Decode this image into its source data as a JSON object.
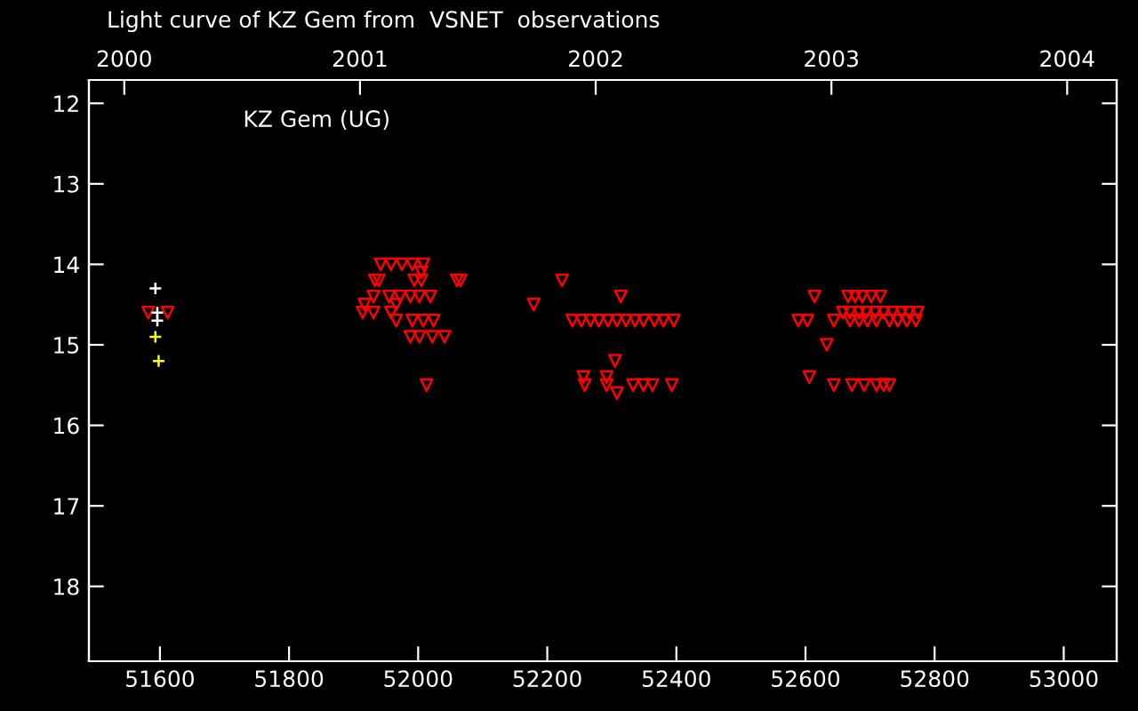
{
  "chart_data": {
    "type": "scatter",
    "title": "Light curve of KZ Gem from  VSNET  observations",
    "annotations": [
      "KZ Gem (UG)"
    ],
    "xlim": [
      51490,
      53082
    ],
    "xticks": [
      51600,
      51800,
      52000,
      52200,
      52400,
      52600,
      52800,
      53000
    ],
    "x2lim": [
      1999.85,
      2004.21
    ],
    "x2ticks": [
      2000,
      2001,
      2002,
      2003,
      2004
    ],
    "ylim": [
      18.93,
      11.71
    ],
    "yticks": [
      12,
      13,
      14,
      15,
      16,
      17,
      18
    ],
    "grid": false,
    "legend": false,
    "series": [
      {
        "color": "#ff0000",
        "marker": "triangle",
        "x": [
          51582,
          51612,
          51942,
          51958,
          51975,
          51991,
          52008,
          52005,
          51933,
          51939,
          51994,
          52005,
          52060,
          52066,
          51931,
          51955,
          51972,
          51988,
          52002,
          52019,
          51917,
          51966,
          51914,
          51931,
          51958,
          51966,
          51991,
          52008,
          52024,
          51988,
          52002,
          52022,
          52041,
          52013,
          52223,
          52314,
          52179,
          52239,
          52253,
          52267,
          52280,
          52294,
          52308,
          52322,
          52336,
          52349,
          52366,
          52380,
          52396,
          52305,
          52256,
          52292,
          52258,
          52292,
          52333,
          52349,
          52363,
          52393,
          52308,
          52614,
          52666,
          52677,
          52688,
          52702,
          52716,
          52658,
          52669,
          52683,
          52694,
          52708,
          52721,
          52735,
          52749,
          52760,
          52774,
          52589,
          52603,
          52644,
          52669,
          52683,
          52696,
          52710,
          52730,
          52743,
          52757,
          52771,
          52633,
          52606,
          52644,
          52672,
          52691,
          52710,
          52721,
          52730
        ],
        "values": [
          14.6,
          14.6,
          14.0,
          14.0,
          14.0,
          14.0,
          14.0,
          14.1,
          14.2,
          14.2,
          14.2,
          14.2,
          14.2,
          14.2,
          14.4,
          14.4,
          14.4,
          14.4,
          14.4,
          14.4,
          14.5,
          14.5,
          14.6,
          14.6,
          14.6,
          14.7,
          14.7,
          14.7,
          14.7,
          14.9,
          14.9,
          14.9,
          14.9,
          15.5,
          14.2,
          14.4,
          14.5,
          14.7,
          14.7,
          14.7,
          14.7,
          14.7,
          14.7,
          14.7,
          14.7,
          14.7,
          14.7,
          14.7,
          14.7,
          15.2,
          15.4,
          15.4,
          15.5,
          15.5,
          15.5,
          15.5,
          15.5,
          15.5,
          15.6,
          14.4,
          14.4,
          14.4,
          14.4,
          14.4,
          14.4,
          14.6,
          14.6,
          14.6,
          14.6,
          14.6,
          14.6,
          14.6,
          14.6,
          14.6,
          14.6,
          14.7,
          14.7,
          14.7,
          14.7,
          14.7,
          14.7,
          14.7,
          14.7,
          14.7,
          14.7,
          14.7,
          15.0,
          15.4,
          15.5,
          15.5,
          15.5,
          15.5,
          15.5,
          15.5
        ]
      },
      {
        "color": "#ffffff",
        "marker": "cross",
        "x": [
          51593,
          51596,
          51596
        ],
        "values": [
          14.3,
          14.6,
          14.7
        ]
      },
      {
        "color": "#ffff00",
        "marker": "cross",
        "x": [
          51593,
          51598
        ],
        "values": [
          14.9,
          15.2
        ]
      }
    ]
  }
}
